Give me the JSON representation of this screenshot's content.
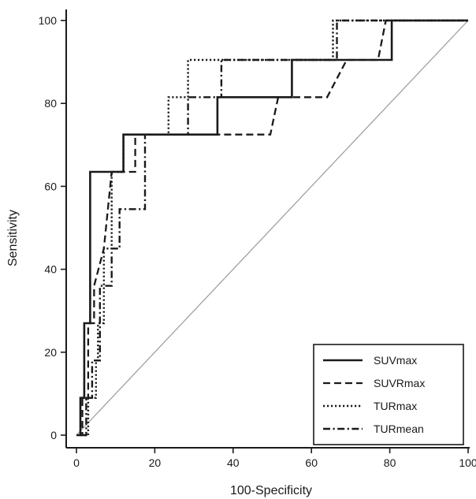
{
  "chart_data": {
    "type": "line",
    "title": "",
    "xlabel": "100-Specificity",
    "ylabel": "Sensitivity",
    "xlim": [
      0,
      100
    ],
    "ylim": [
      0,
      100
    ],
    "xticks": [
      "0",
      "20",
      "40",
      "60",
      "80",
      "100"
    ],
    "yticks": [
      "0",
      "20",
      "40",
      "60",
      "80",
      "100"
    ],
    "grid": false,
    "legend_position": "bottom-right",
    "reference_line": {
      "x": [
        0,
        100
      ],
      "y": [
        0,
        100
      ],
      "color": "#9a9a9a"
    },
    "series": [
      {
        "name": "SUVmax",
        "style": "solid",
        "x": [
          0,
          1,
          1,
          2,
          2,
          3.5,
          3.5,
          12,
          12,
          36,
          36,
          55,
          55,
          80.5,
          80.5,
          100
        ],
        "y": [
          0,
          0,
          9,
          9,
          27,
          27,
          63.5,
          63.5,
          72.5,
          72.5,
          81.5,
          81.5,
          90.5,
          90.5,
          100,
          100
        ]
      },
      {
        "name": "SUVRmax",
        "style": "dashed",
        "x": [
          0.5,
          1.5,
          1.5,
          3,
          3,
          4.5,
          4.5,
          7,
          9,
          15,
          15,
          49.5,
          51.5,
          64,
          69,
          77,
          79,
          100
        ],
        "y": [
          0,
          0,
          9,
          9,
          27,
          27,
          36,
          45,
          63.5,
          63.5,
          72.5,
          72.5,
          81.5,
          81.5,
          90.5,
          90.5,
          100,
          100
        ]
      },
      {
        "name": "TURmax",
        "style": "dotted",
        "x": [
          1,
          3,
          3,
          5,
          5,
          5.5,
          5.5,
          7,
          7,
          9,
          9,
          12,
          12,
          23.5,
          23.5,
          28.5,
          28.5,
          65.5,
          65.5,
          100
        ],
        "y": [
          0,
          0,
          9,
          9,
          18,
          18,
          27,
          27,
          45,
          45,
          63.5,
          63.5,
          72.5,
          72.5,
          81.5,
          81.5,
          90.5,
          90.5,
          100,
          100
        ]
      },
      {
        "name": "TURmean",
        "style": "dashdot",
        "x": [
          1.5,
          2.5,
          2.5,
          4,
          4,
          6,
          6,
          9,
          9,
          11,
          11,
          17.5,
          17.5,
          28.5,
          28.5,
          37,
          37,
          66.5,
          66.5,
          100
        ],
        "y": [
          0,
          0,
          9,
          9,
          18,
          18,
          36,
          36,
          45,
          45,
          54.5,
          54.5,
          72.5,
          72.5,
          81.5,
          81.5,
          90.5,
          90.5,
          100,
          100
        ]
      }
    ]
  }
}
